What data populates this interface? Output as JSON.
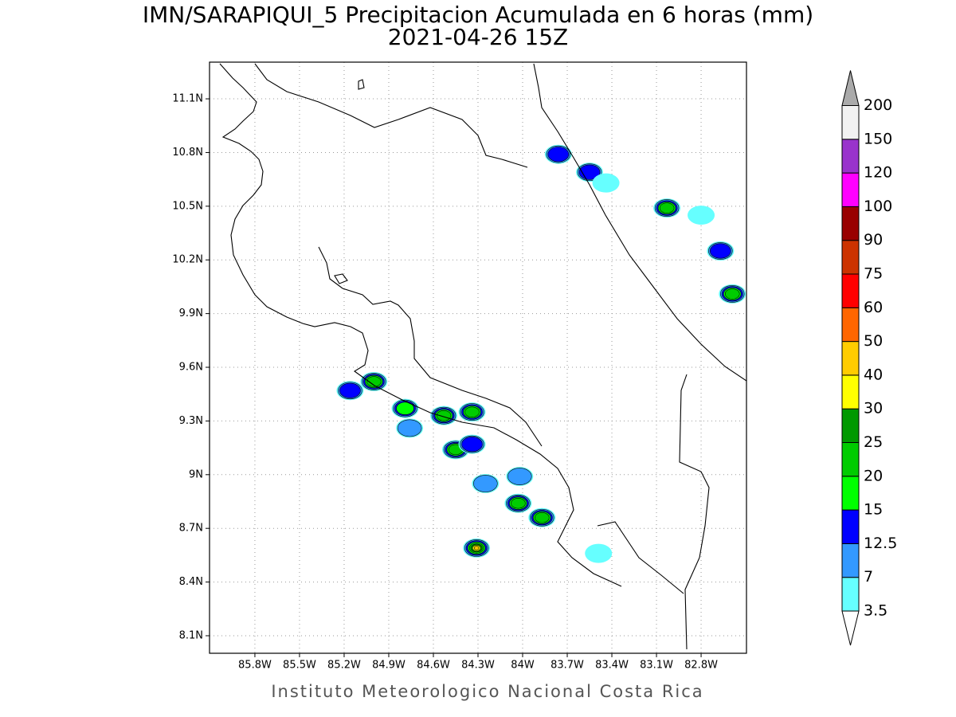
{
  "title": "IMN/SARAPIQUI_5 Precipitacion Acumulada en 6 horas (mm)",
  "subtitle": "2021-04-26 15Z",
  "footer": "Instituto Meteorologico Nacional Costa Rica",
  "map": {
    "xlim": [
      -86.105,
      -82.495
    ],
    "ylim": [
      8.002,
      11.305
    ],
    "xticks": [
      {
        "value": -85.8,
        "label": "85.8W"
      },
      {
        "value": -85.5,
        "label": "85.5W"
      },
      {
        "value": -85.2,
        "label": "85.2W"
      },
      {
        "value": -84.9,
        "label": "84.9W"
      },
      {
        "value": -84.6,
        "label": "84.6W"
      },
      {
        "value": -84.3,
        "label": "84.3W"
      },
      {
        "value": -84.0,
        "label": "84W"
      },
      {
        "value": -83.7,
        "label": "83.7W"
      },
      {
        "value": -83.4,
        "label": "83.4W"
      },
      {
        "value": -83.1,
        "label": "83.1W"
      },
      {
        "value": -82.8,
        "label": "82.8W"
      }
    ],
    "yticks": [
      {
        "value": 8.1,
        "label": "8.1N"
      },
      {
        "value": 8.4,
        "label": "8.4N"
      },
      {
        "value": 8.7,
        "label": "8.7N"
      },
      {
        "value": 9.0,
        "label": "9N"
      },
      {
        "value": 9.3,
        "label": "9.3N"
      },
      {
        "value": 9.6,
        "label": "9.6N"
      },
      {
        "value": 9.9,
        "label": "9.9N"
      },
      {
        "value": 10.2,
        "label": "10.2N"
      },
      {
        "value": 10.5,
        "label": "10.5N"
      },
      {
        "value": 10.8,
        "label": "10.8N"
      },
      {
        "value": 11.1,
        "label": "11.1N"
      }
    ],
    "grid": true,
    "cells": [
      {
        "lon": -85.0,
        "lat": 9.52,
        "value": 20
      },
      {
        "lon": -84.79,
        "lat": 9.37,
        "value": 15
      },
      {
        "lon": -84.53,
        "lat": 9.33,
        "value": 20
      },
      {
        "lon": -84.34,
        "lat": 9.35,
        "value": 20
      },
      {
        "lon": -84.45,
        "lat": 9.14,
        "value": 20
      },
      {
        "lon": -84.34,
        "lat": 9.17,
        "value": 12.5
      },
      {
        "lon": -85.16,
        "lat": 9.47,
        "value": 12.5
      },
      {
        "lon": -84.03,
        "lat": 8.84,
        "value": 20
      },
      {
        "lon": -83.87,
        "lat": 8.76,
        "value": 20
      },
      {
        "lon": -84.31,
        "lat": 8.59,
        "value": 40
      },
      {
        "lon": -84.02,
        "lat": 8.99,
        "value": 7
      },
      {
        "lon": -84.25,
        "lat": 8.95,
        "value": 7
      },
      {
        "lon": -83.03,
        "lat": 10.49,
        "value": 20
      },
      {
        "lon": -83.76,
        "lat": 10.79,
        "value": 12.5
      },
      {
        "lon": -83.55,
        "lat": 10.69,
        "value": 12.5
      },
      {
        "lon": -82.59,
        "lat": 10.01,
        "value": 20
      },
      {
        "lon": -82.67,
        "lat": 10.25,
        "value": 12.5
      },
      {
        "lon": -83.44,
        "lat": 10.63,
        "value": 3.5
      },
      {
        "lon": -82.8,
        "lat": 10.45,
        "value": 3.5
      },
      {
        "lon": -84.76,
        "lat": 9.26,
        "value": 7
      },
      {
        "lon": -83.49,
        "lat": 8.56,
        "value": 3.5
      }
    ]
  },
  "colorbar": {
    "levels": [
      3.5,
      7,
      12.5,
      15,
      20,
      25,
      30,
      40,
      50,
      60,
      75,
      90,
      100,
      120,
      150,
      200
    ],
    "colors": [
      "#ffffff",
      "#66ffff",
      "#3399ff",
      "#0000ff",
      "#00ff00",
      "#00cc00",
      "#009900",
      "#ffff00",
      "#ffcc00",
      "#ff6600",
      "#ff0000",
      "#cc3300",
      "#990000",
      "#ff00ff",
      "#9933cc",
      "#f2f2f2",
      "#aaaaaa"
    ]
  }
}
